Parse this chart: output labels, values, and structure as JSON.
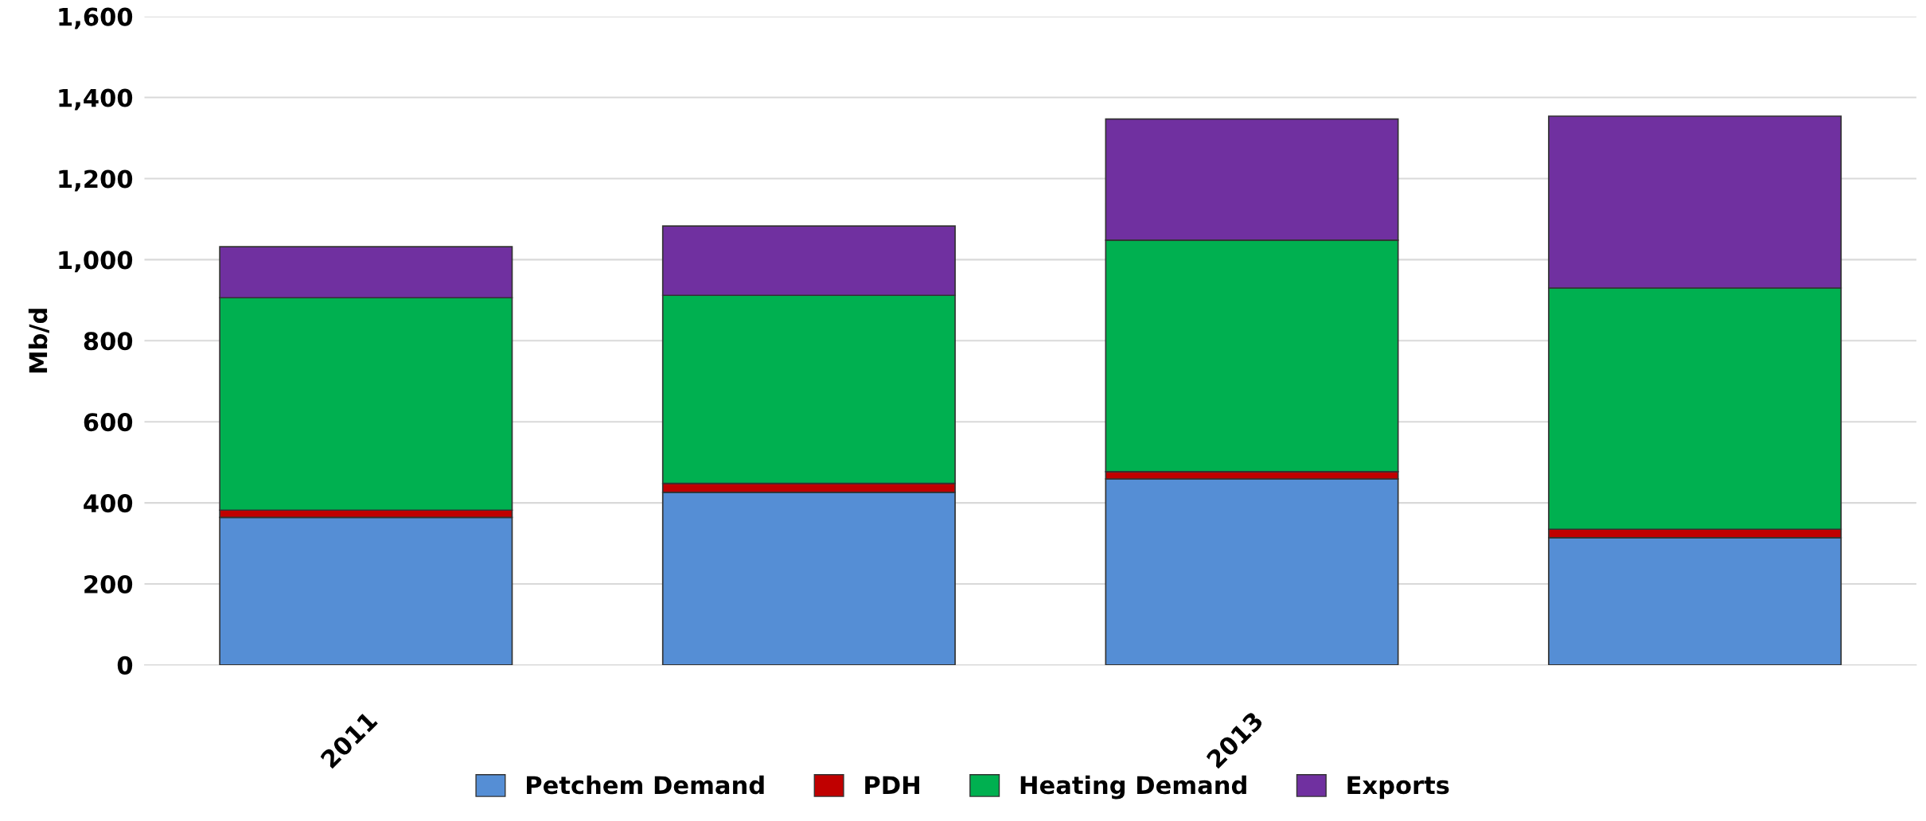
{
  "chart_data": {
    "type": "bar",
    "stacked": true,
    "ylabel": "Mb/d",
    "categories": [
      "2011",
      null,
      "2013",
      null
    ],
    "series": [
      {
        "name": "Petchem Demand",
        "color": "#558ed5",
        "values": [
          364,
          426,
          459,
          314
        ]
      },
      {
        "name": "PDH",
        "color": "#c00000",
        "values": [
          18,
          22,
          18,
          21
        ]
      },
      {
        "name": "Heating Demand",
        "color": "#00b050",
        "values": [
          524,
          464,
          571,
          595
        ]
      },
      {
        "name": "Exports",
        "color": "#7030a0",
        "values": [
          126,
          171,
          299,
          424
        ]
      }
    ],
    "ylim": [
      0,
      1600
    ],
    "yticks": [
      0,
      {
        "value": 200,
        "label": "200"
      },
      {
        "value": 400,
        "label": "400"
      },
      {
        "value": 600,
        "label": "600"
      },
      {
        "value": 800,
        "label": "800"
      },
      {
        "value": 1000,
        "label": "1,000"
      },
      {
        "value": 1200,
        "label": "1,200"
      },
      {
        "value": 1400,
        "label": "1,400"
      },
      {
        "value": 1600,
        "label": "1,600"
      }
    ],
    "grid": "y",
    "legend": "bottom"
  }
}
